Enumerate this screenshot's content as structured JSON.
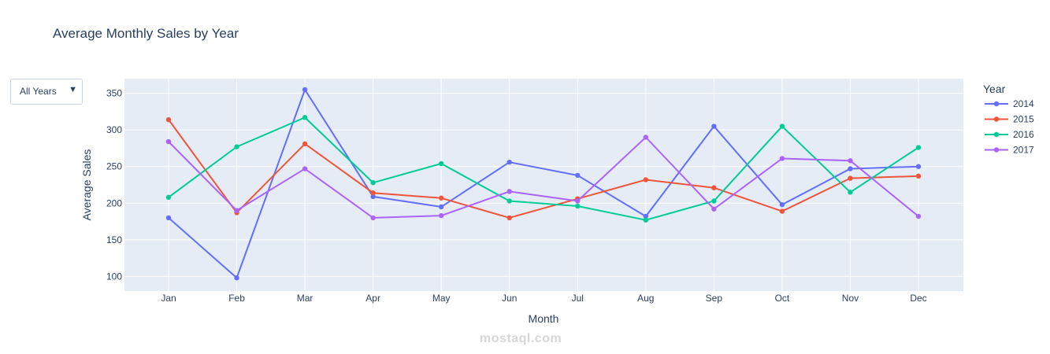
{
  "chart_data": {
    "type": "line",
    "title": "Average Monthly Sales by Year",
    "xlabel": "Month",
    "ylabel": "Average Sales",
    "categories": [
      "Jan",
      "Feb",
      "Mar",
      "Apr",
      "May",
      "Jun",
      "Jul",
      "Aug",
      "Sep",
      "Oct",
      "Nov",
      "Dec"
    ],
    "ylim": [
      80,
      370
    ],
    "yticks": [
      100,
      150,
      200,
      250,
      300,
      350
    ],
    "grid": true,
    "legend": {
      "title": "Year",
      "placement": "right"
    },
    "series": [
      {
        "name": "2014",
        "color": "#636efa",
        "values": [
          180,
          98,
          355,
          209,
          195,
          256,
          238,
          182,
          305,
          198,
          247,
          250
        ]
      },
      {
        "name": "2015",
        "color": "#EF553B",
        "values": [
          314,
          187,
          281,
          214,
          207,
          180,
          206,
          232,
          221,
          189,
          234,
          237
        ]
      },
      {
        "name": "2016",
        "color": "#00cc96",
        "values": [
          208,
          277,
          317,
          228,
          254,
          203,
          196,
          177,
          203,
          305,
          215,
          276
        ]
      },
      {
        "name": "2017",
        "color": "#ab63fa",
        "values": [
          284,
          190,
          247,
          180,
          183,
          216,
          203,
          290,
          192,
          261,
          258,
          182
        ]
      }
    ]
  },
  "dropdown": {
    "selected": "All Years"
  },
  "watermark": "mostaql.com",
  "colors": {
    "plot_bg": "#e5ecf6",
    "grid": "#ffffff",
    "text": "#2a3f5f"
  }
}
